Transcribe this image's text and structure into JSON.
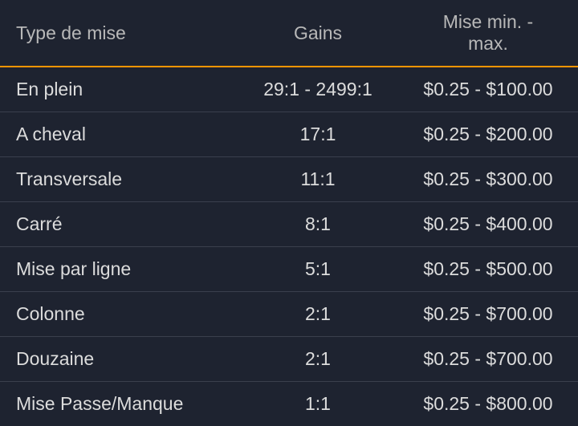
{
  "table": {
    "columns": [
      {
        "label": "Type de mise",
        "class": "col-type"
      },
      {
        "label": "Gains",
        "class": "col-gains"
      },
      {
        "label": "Mise min. - max.",
        "class": "col-minmax"
      }
    ],
    "rows": [
      {
        "type": "En plein",
        "gains": "29:1 - 2499:1",
        "minmax": "$0.25 - $100.00"
      },
      {
        "type": "A cheval",
        "gains": "17:1",
        "minmax": "$0.25 - $200.00"
      },
      {
        "type": "Transversale",
        "gains": "11:1",
        "minmax": "$0.25 - $300.00"
      },
      {
        "type": "Carré",
        "gains": "8:1",
        "minmax": "$0.25 - $400.00"
      },
      {
        "type": "Mise par ligne",
        "gains": "5:1",
        "minmax": "$0.25 - $500.00"
      },
      {
        "type": "Colonne",
        "gains": "2:1",
        "minmax": "$0.25 - $700.00"
      },
      {
        "type": "Douzaine",
        "gains": "2:1",
        "minmax": "$0.25 - $700.00"
      },
      {
        "type": "Mise Passe/Manque",
        "gains": "1:1",
        "minmax": "$0.25 - $800.00"
      }
    ],
    "styling": {
      "background_color": "#1e2330",
      "text_color": "#dcdcdc",
      "header_text_color": "#b8b8b8",
      "header_border_color": "#ff9500",
      "row_border_color": "#3a3f4d",
      "font_size": 23,
      "header_border_width": 2,
      "row_border_width": 1,
      "cell_padding_vertical": 14,
      "cell_padding_horizontal": 20
    }
  }
}
